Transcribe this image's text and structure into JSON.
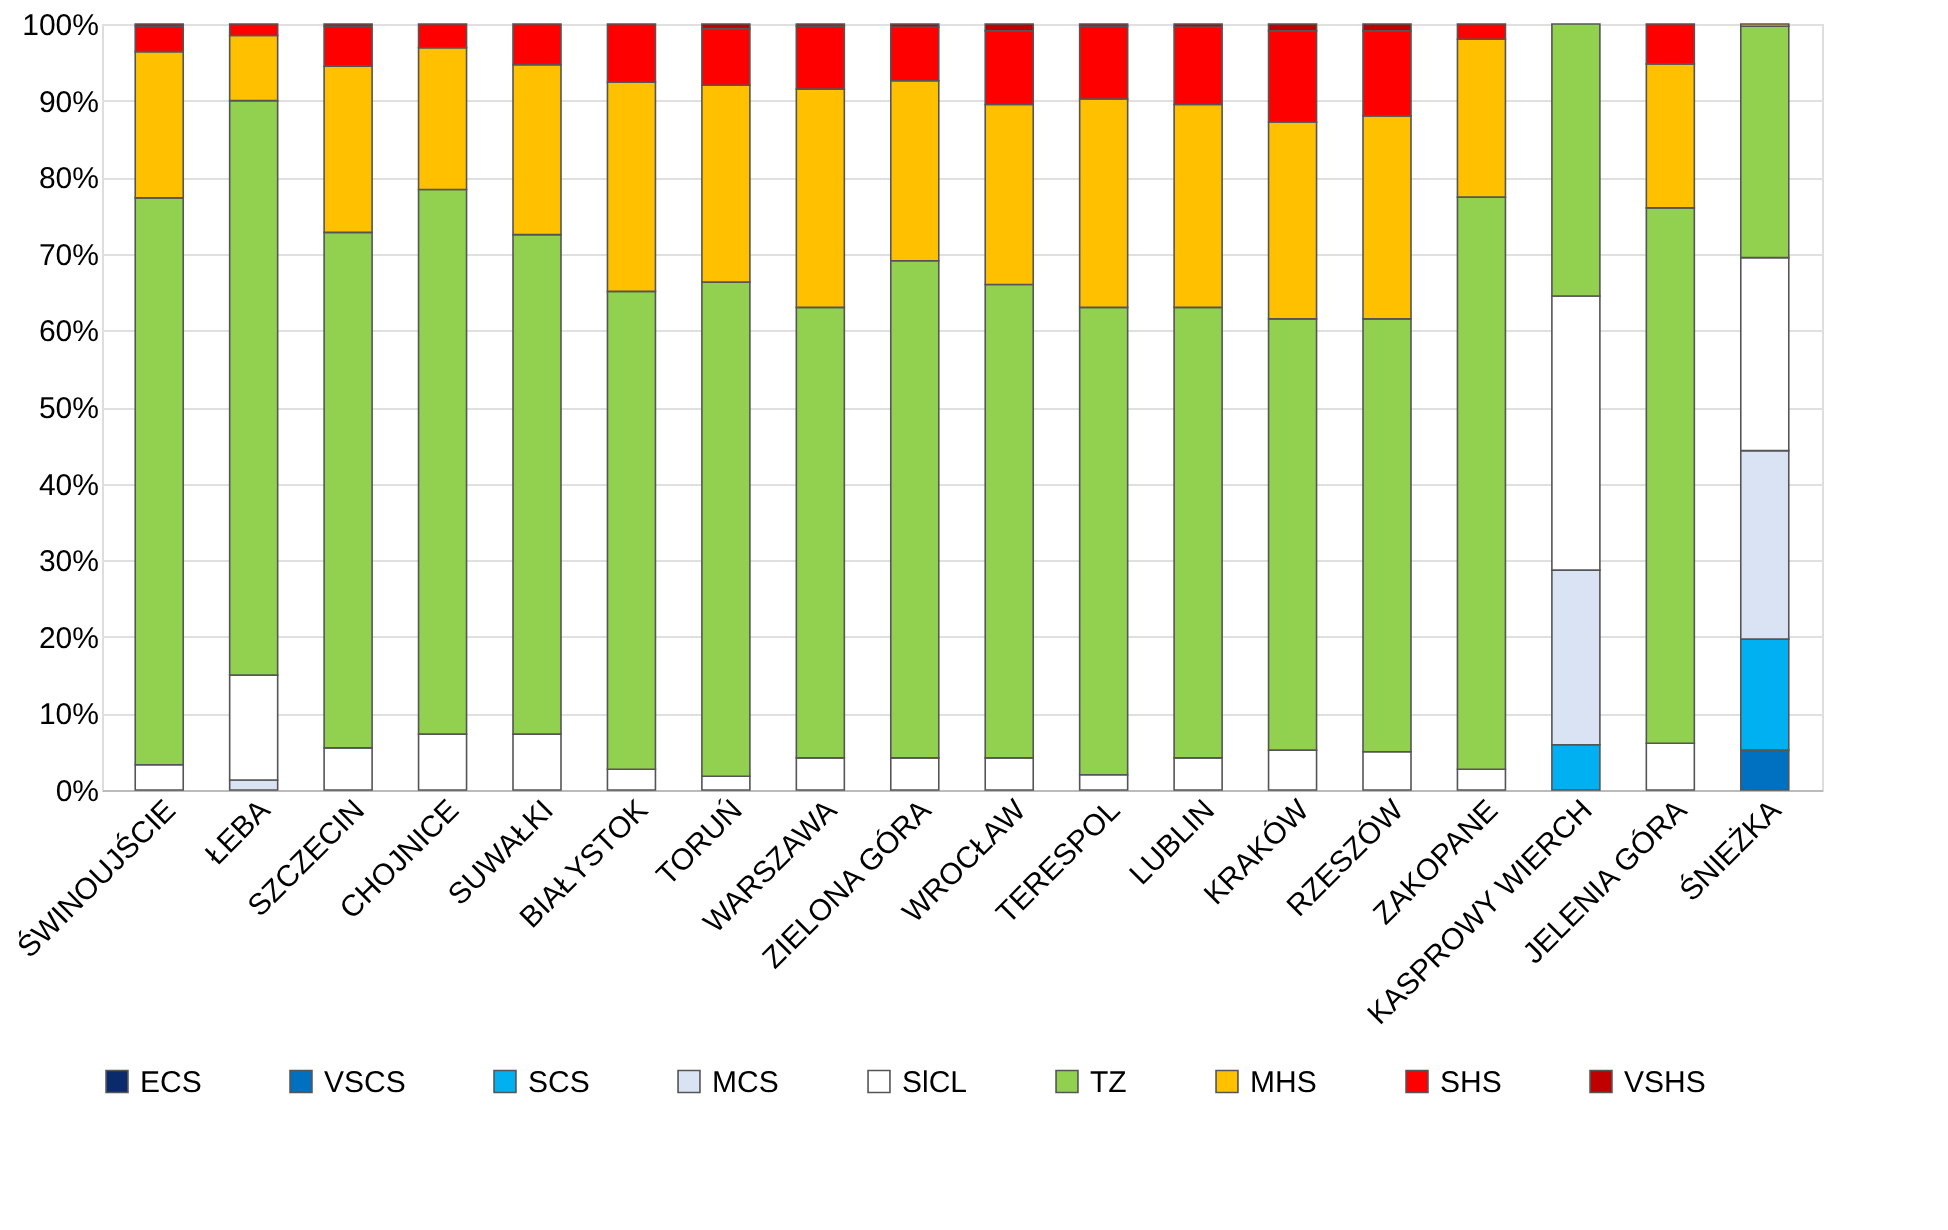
{
  "chart_data": {
    "type": "bar",
    "stacked": true,
    "categories": [
      "ŚWINOUJŚCIE",
      "ŁEBA",
      "SZCZECIN",
      "CHOJNICE",
      "SUWAŁKI",
      "BIAŁYSTOK",
      "TORUŃ",
      "WARSZAWA",
      "ZIELONA GÓRA",
      "WROCŁAW",
      "TERESPOL",
      "LUBLIN",
      "KRAKÓW",
      "RZESZÓW",
      "ZAKOPANE",
      "KASPROWY WIERCH",
      "JELENIA GÓRA",
      "ŚNIEŻKA"
    ],
    "series": [
      {
        "name": "ECS",
        "color": "#0b2a6b",
        "values": [
          0,
          0,
          0,
          0,
          0,
          0,
          0,
          0,
          0,
          0,
          0,
          0,
          0,
          0,
          0,
          0,
          0,
          0
        ]
      },
      {
        "name": "VSCS",
        "color": "#0070c0",
        "values": [
          0,
          0,
          0,
          0,
          0,
          0,
          0,
          0,
          0,
          0,
          0,
          0,
          0,
          0,
          0,
          0,
          0,
          5.2
        ]
      },
      {
        "name": "SCS",
        "color": "#00b0f0",
        "values": [
          0,
          0,
          0,
          0,
          0,
          0,
          0,
          0,
          0,
          0,
          0,
          0,
          0,
          0,
          0,
          5.9,
          0,
          14.5
        ]
      },
      {
        "name": "MCS",
        "color": "#dae3f3",
        "values": [
          0,
          1.3,
          0,
          0,
          0,
          0,
          0,
          0,
          0,
          0,
          0,
          0,
          0,
          0,
          0,
          22.8,
          0,
          24.6
        ]
      },
      {
        "name": "SlCL",
        "color": "#ffffff",
        "values": [
          3.3,
          13.7,
          5.5,
          7.3,
          7.3,
          2.7,
          1.8,
          4.2,
          4.2,
          4.2,
          2.0,
          4.2,
          5.2,
          5.0,
          2.7,
          35.8,
          6.1,
          25.2
        ]
      },
      {
        "name": "TZ",
        "color": "#92d050",
        "values": [
          74.0,
          75.0,
          67.3,
          71.1,
          65.2,
          62.4,
          64.5,
          58.8,
          64.9,
          61.8,
          61.0,
          58.8,
          56.3,
          56.5,
          74.7,
          35.5,
          69.9,
          30.2
        ]
      },
      {
        "name": "MHS",
        "color": "#ffc000",
        "values": [
          19.1,
          8.5,
          21.7,
          18.5,
          22.2,
          27.3,
          25.7,
          28.5,
          23.5,
          23.5,
          27.2,
          26.5,
          25.7,
          26.5,
          20.6,
          0,
          18.8,
          0.3
        ]
      },
      {
        "name": "SHS",
        "color": "#ff0000",
        "values": [
          3.3,
          1.5,
          5.2,
          3.1,
          5.3,
          7.6,
          7.4,
          8.2,
          7.0,
          9.6,
          9.5,
          10.1,
          11.9,
          11.1,
          2.0,
          0,
          5.2,
          0
        ]
      },
      {
        "name": "VSHS",
        "color": "#c00000",
        "values": [
          0.3,
          0,
          0.3,
          0,
          0,
          0,
          0.6,
          0.3,
          0.4,
          0.9,
          0.3,
          0.4,
          0.9,
          0.9,
          0,
          0,
          0,
          0
        ]
      }
    ],
    "ylim": [
      0,
      100
    ],
    "yticks": [
      {
        "value": 0,
        "label": "0%"
      },
      {
        "value": 10,
        "label": "10%"
      },
      {
        "value": 20,
        "label": "20%"
      },
      {
        "value": 30,
        "label": "30%"
      },
      {
        "value": 40,
        "label": "40%"
      },
      {
        "value": 50,
        "label": "50%"
      },
      {
        "value": 60,
        "label": "60%"
      },
      {
        "value": 70,
        "label": "70%"
      },
      {
        "value": 80,
        "label": "80%"
      },
      {
        "value": 90,
        "label": "90%"
      },
      {
        "value": 100,
        "label": "100%"
      }
    ],
    "grid": "y",
    "legend": "bottom"
  }
}
